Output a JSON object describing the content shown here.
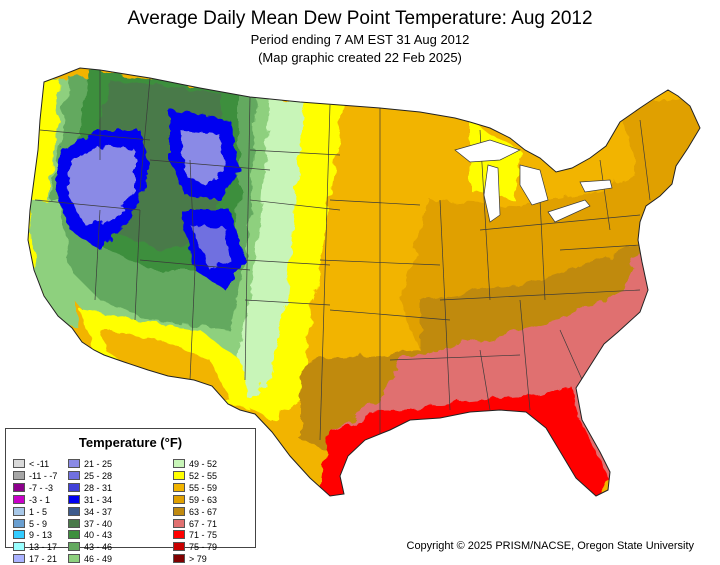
{
  "header": {
    "title": "Average Daily Mean Dew Point Temperature: Aug 2012",
    "period": "Period ending 7 AM EST 31 Aug 2012",
    "created": "(Map graphic created 22 Feb 2025)"
  },
  "legend": {
    "title": "Temperature (°F)",
    "items": [
      {
        "label": "< -11",
        "color": "#d9d9d9"
      },
      {
        "label": "-11 - -7",
        "color": "#a6a6a6"
      },
      {
        "label": "-7 - -3",
        "color": "#8c008c"
      },
      {
        "label": "-3 - 1",
        "color": "#c800c8"
      },
      {
        "label": "1 - 5",
        "color": "#a8c8e8"
      },
      {
        "label": "5 - 9",
        "color": "#6a9fd0"
      },
      {
        "label": "9 - 13",
        "color": "#33ccff"
      },
      {
        "label": "13 - 17",
        "color": "#99ffff"
      },
      {
        "label": "17 - 21",
        "color": "#aab2ff"
      },
      {
        "label": "21 - 25",
        "color": "#8a8ae6"
      },
      {
        "label": "25 - 28",
        "color": "#7070e0"
      },
      {
        "label": "28 - 31",
        "color": "#4040d8"
      },
      {
        "label": "31 - 34",
        "color": "#0000f0"
      },
      {
        "label": "34 - 37",
        "color": "#3c5a8c"
      },
      {
        "label": "37 - 40",
        "color": "#4a7a4a"
      },
      {
        "label": "40 - 43",
        "color": "#3e8f3e"
      },
      {
        "label": "43 - 46",
        "color": "#63a95f"
      },
      {
        "label": "46 - 49",
        "color": "#8ed07e"
      },
      {
        "label": "49 - 52",
        "color": "#c8f5b8"
      },
      {
        "label": "52 - 55",
        "color": "#ffff00"
      },
      {
        "label": "55 - 59",
        "color": "#f2b400"
      },
      {
        "label": "59 - 63",
        "color": "#e0a000"
      },
      {
        "label": "63 - 67",
        "color": "#c08a10"
      },
      {
        "label": "67 - 71",
        "color": "#e07070"
      },
      {
        "label": "71 - 75",
        "color": "#ff0000"
      },
      {
        "label": "75 - 79",
        "color": "#c80000"
      },
      {
        "label": "> 79",
        "color": "#800000"
      }
    ]
  },
  "footer": {
    "copyright": "Copyright © 2025 PRISM/NACSE, Oregon State University"
  }
}
